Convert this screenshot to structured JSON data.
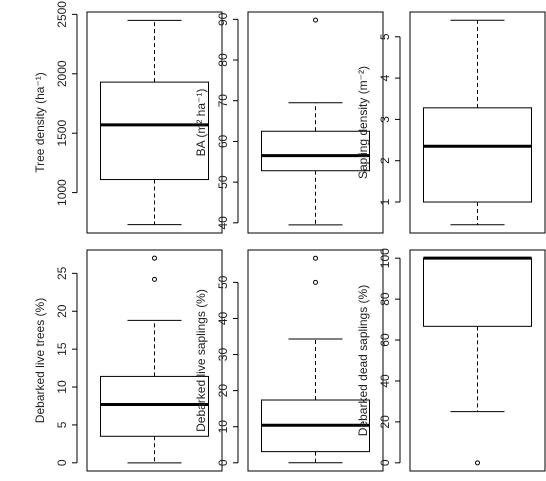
{
  "chart_data": [
    {
      "type": "box",
      "ylabel": "Tree density (ha⁻¹)",
      "ylim": [
        660,
        2520
      ],
      "yticks": [
        1000,
        1500,
        2000,
        2500
      ],
      "box": {
        "whisker_low": 730,
        "q1": 1110,
        "median": 1570,
        "q3": 1930,
        "whisker_high": 2450
      },
      "outliers": []
    },
    {
      "type": "box",
      "ylabel": "BA (m² ha⁻¹)",
      "ylim": [
        37.5,
        91.8
      ],
      "yticks": [
        40,
        50,
        60,
        70,
        80,
        90
      ],
      "box": {
        "whisker_low": 39.5,
        "q1": 52.8,
        "median": 56.5,
        "q3": 62.5,
        "whisker_high": 69.5
      },
      "outliers": [
        89.8
      ]
    },
    {
      "type": "box",
      "ylabel": "Sapling density (m⁻²)",
      "ylim": [
        0.25,
        5.6
      ],
      "yticks": [
        1,
        2,
        3,
        4,
        5
      ],
      "box": {
        "whisker_low": 0.45,
        "q1": 1.0,
        "median": 2.35,
        "q3": 3.28,
        "whisker_high": 5.4
      },
      "outliers": []
    },
    {
      "type": "box",
      "ylabel": "Debarked live trees (%)",
      "ylim": [
        -1.08,
        28.08
      ],
      "yticks": [
        0,
        5,
        10,
        15,
        20,
        25
      ],
      "box": {
        "whisker_low": 0,
        "q1": 3.5,
        "median": 7.7,
        "q3": 11.4,
        "whisker_high": 18.8
      },
      "outliers": [
        24.2,
        27
      ]
    },
    {
      "type": "box",
      "ylabel": "Debarked live saplings (%)",
      "ylim": [
        -2.27,
        58.97
      ],
      "yticks": [
        0,
        10,
        20,
        30,
        40,
        50
      ],
      "box": {
        "whisker_low": 0,
        "q1": 3.1,
        "median": 10.4,
        "q3": 17.4,
        "whisker_high": 34.3
      },
      "outliers": [
        50,
        56.7
      ]
    },
    {
      "type": "box",
      "ylabel": "Debarked dead saplings (%)",
      "ylim": [
        -4,
        104
      ],
      "yticks": [
        0,
        20,
        40,
        60,
        80,
        100
      ],
      "box": {
        "whisker_low": 25,
        "q1": 66.7,
        "median": 100,
        "q3": 100,
        "whisker_high": 100
      },
      "outliers": [
        0
      ]
    }
  ]
}
